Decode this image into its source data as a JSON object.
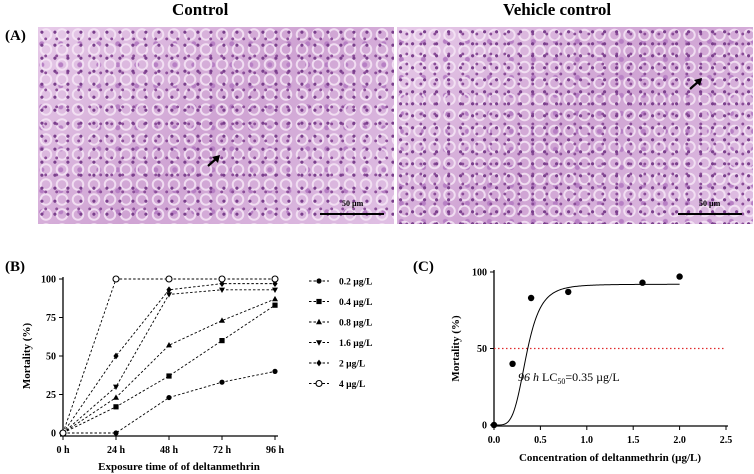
{
  "panelA": {
    "label": "(A)",
    "left_title": "Control",
    "right_title": "Vehicle control",
    "scale_text": "50 µm"
  },
  "panelB": {
    "label": "(B)"
  },
  "panelC": {
    "label": "(C)",
    "annotation_time": "96 h",
    "annotation_lc": " LC",
    "annotation_sub": "50",
    "annotation_value": "=0.35 µg/L"
  },
  "chart_data": [
    {
      "type": "line",
      "panel": "B",
      "xlabel": "Exposure time of  of deltanmethrin",
      "ylabel": "Mortality (%)",
      "categories": [
        "0 h",
        "24 h",
        "48 h",
        "72 h",
        "96 h"
      ],
      "ylim": [
        0,
        100
      ],
      "yticks": [
        0,
        25,
        50,
        75,
        100
      ],
      "legend_position": "right",
      "series": [
        {
          "name": "0.2 µg/L",
          "marker": "circle-filled",
          "values": [
            0,
            0,
            23,
            33,
            40
          ]
        },
        {
          "name": "0.4 µg/L",
          "marker": "square",
          "values": [
            0,
            17,
            37,
            60,
            83
          ]
        },
        {
          "name": "0.8 µg/L",
          "marker": "triangle-up",
          "values": [
            0,
            23,
            57,
            73,
            87
          ]
        },
        {
          "name": "1.6 µg/L",
          "marker": "triangle-down",
          "values": [
            0,
            30,
            90,
            93,
            93
          ]
        },
        {
          "name": "2 µg/L",
          "marker": "diamond",
          "values": [
            0,
            50,
            93,
            97,
            97
          ]
        },
        {
          "name": "4 µg/L",
          "marker": "circle-open",
          "values": [
            0,
            100,
            100,
            100,
            100
          ]
        }
      ]
    },
    {
      "type": "scatter",
      "panel": "C",
      "xlabel": "Concentration of deltanmethrin (µg/L)",
      "ylabel": "Mortality (%)",
      "xlim": [
        0,
        2.5
      ],
      "ylim": [
        0,
        100
      ],
      "xticks": [
        "0.0",
        "0.5",
        "1.0",
        "1.5",
        "2.0",
        "2.5"
      ],
      "yticks": [
        0,
        50,
        100
      ],
      "points": [
        {
          "x": 0,
          "y": 0
        },
        {
          "x": 0.2,
          "y": 40
        },
        {
          "x": 0.4,
          "y": 83
        },
        {
          "x": 0.8,
          "y": 87
        },
        {
          "x": 1.6,
          "y": 93
        },
        {
          "x": 2.0,
          "y": 97
        }
      ],
      "fit_curve": {
        "lc50": 0.35,
        "top": 92,
        "bottom": 0,
        "hill": 4.5
      },
      "reference_line": {
        "y": 50,
        "color": "#e0282b",
        "style": "dotted"
      }
    }
  ]
}
